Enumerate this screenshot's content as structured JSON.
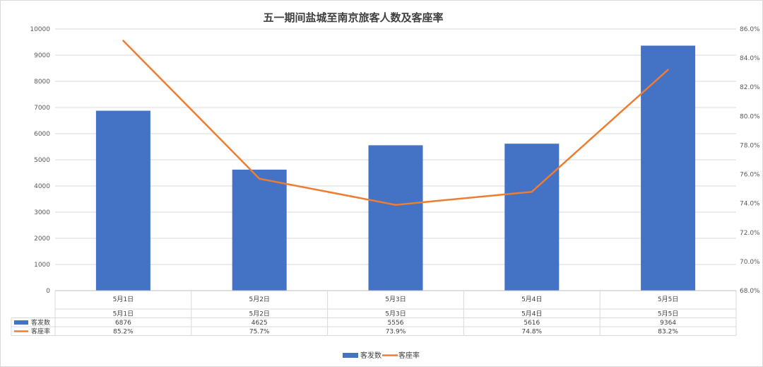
{
  "chart_data": {
    "type": "bar",
    "title": "五一期间盐城至南京旅客人数及客座率",
    "categories": [
      "5月1日",
      "5月2日",
      "5月3日",
      "5月4日",
      "5月5日"
    ],
    "series": [
      {
        "name": "客发数",
        "type": "bar",
        "axis": "left",
        "color": "#4472C4",
        "values": [
          6876,
          4625,
          5556,
          5616,
          9364
        ],
        "table_labels": [
          "6876",
          "4625",
          "5556",
          "5616",
          "9364"
        ]
      },
      {
        "name": "客座率",
        "type": "line",
        "axis": "right",
        "color": "#ED7D31",
        "values": [
          85.2,
          75.7,
          73.9,
          74.8,
          83.2
        ],
        "table_labels": [
          "85.2%",
          "75.7%",
          "73.9%",
          "74.8%",
          "83.2%"
        ]
      }
    ],
    "y_left": {
      "range": [
        0,
        10000
      ],
      "ticks": [
        "0",
        "1000",
        "2000",
        "3000",
        "4000",
        "5000",
        "6000",
        "7000",
        "8000",
        "9000",
        "10000"
      ]
    },
    "y_right": {
      "range": [
        68,
        86
      ],
      "ticks": [
        "68.0%",
        "70.0%",
        "72.0%",
        "74.0%",
        "76.0%",
        "78.0%",
        "80.0%",
        "82.0%",
        "84.0%",
        "86.0%"
      ]
    },
    "grid": true,
    "legend_position": "bottom",
    "data_table": true
  }
}
